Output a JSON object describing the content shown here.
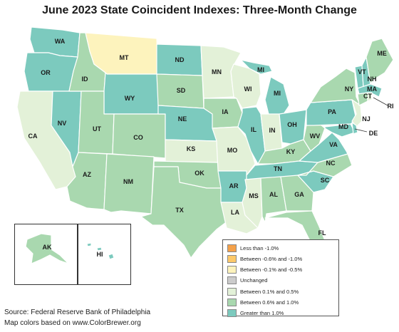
{
  "title": "June 2023 State Coincident Indexes: Three-Month Change",
  "colors": {
    "less_neg1": "#f4a14a",
    "neg06_neg1": "#fdc96a",
    "neg01_neg05": "#fdf3bd",
    "unchanged": "#cccccc",
    "p01_p05": "#e3f1d8",
    "p06_p1": "#a9d8af",
    "gt1": "#7ccabe"
  },
  "legend": {
    "items": [
      {
        "label": "Less than -1.0%",
        "color_key": "less_neg1"
      },
      {
        "label": "Between -0.6% and -1.0%",
        "color_key": "neg06_neg1"
      },
      {
        "label": "Between -0.1% and -0.5%",
        "color_key": "neg01_neg05"
      },
      {
        "label": "Unchanged",
        "color_key": "unchanged"
      },
      {
        "label": "Between 0.1% and 0.5%",
        "color_key": "p01_p05"
      },
      {
        "label": "Between 0.6% and 1.0%",
        "color_key": "p06_p1"
      },
      {
        "label": "Greater than 1.0%",
        "color_key": "gt1"
      }
    ]
  },
  "states": {
    "WA": "gt1",
    "OR": "gt1",
    "CA": "p01_p05",
    "NV": "gt1",
    "ID": "p06_p1",
    "MT": "neg01_neg05",
    "WY": "gt1",
    "UT": "p06_p1",
    "AZ": "p06_p1",
    "CO": "p06_p1",
    "NM": "p06_p1",
    "ND": "gt1",
    "SD": "p06_p1",
    "NE": "gt1",
    "KS": "p01_p05",
    "OK": "p06_p1",
    "TX": "p06_p1",
    "MN": "p01_p05",
    "IA": "p06_p1",
    "MO": "p01_p05",
    "AR": "gt1",
    "LA": "p01_p05",
    "WI": "p01_p05",
    "IL": "gt1",
    "MI": "gt1",
    "IN": "p01_p05",
    "OH": "gt1",
    "KY": "p06_p1",
    "TN": "gt1",
    "MS": "p01_p05",
    "AL": "p06_p1",
    "GA": "p06_p1",
    "FL": "p06_p1",
    "SC": "gt1",
    "NC": "p06_p1",
    "VA": "gt1",
    "WV": "p06_p1",
    "PA": "gt1",
    "NY": "p06_p1",
    "VT": "gt1",
    "NH": "gt1",
    "ME": "p06_p1",
    "MA": "gt1",
    "CT": "p06_p1",
    "RI": "p01_p05",
    "NJ": "p01_p05",
    "DE": "gt1",
    "MD": "gt1",
    "AK": "p06_p1",
    "HI": "gt1"
  },
  "source": {
    "line1": "Source: Federal Reserve Bank of Philadelphia",
    "line2": "Map colors based on www.ColorBrewer.org"
  }
}
